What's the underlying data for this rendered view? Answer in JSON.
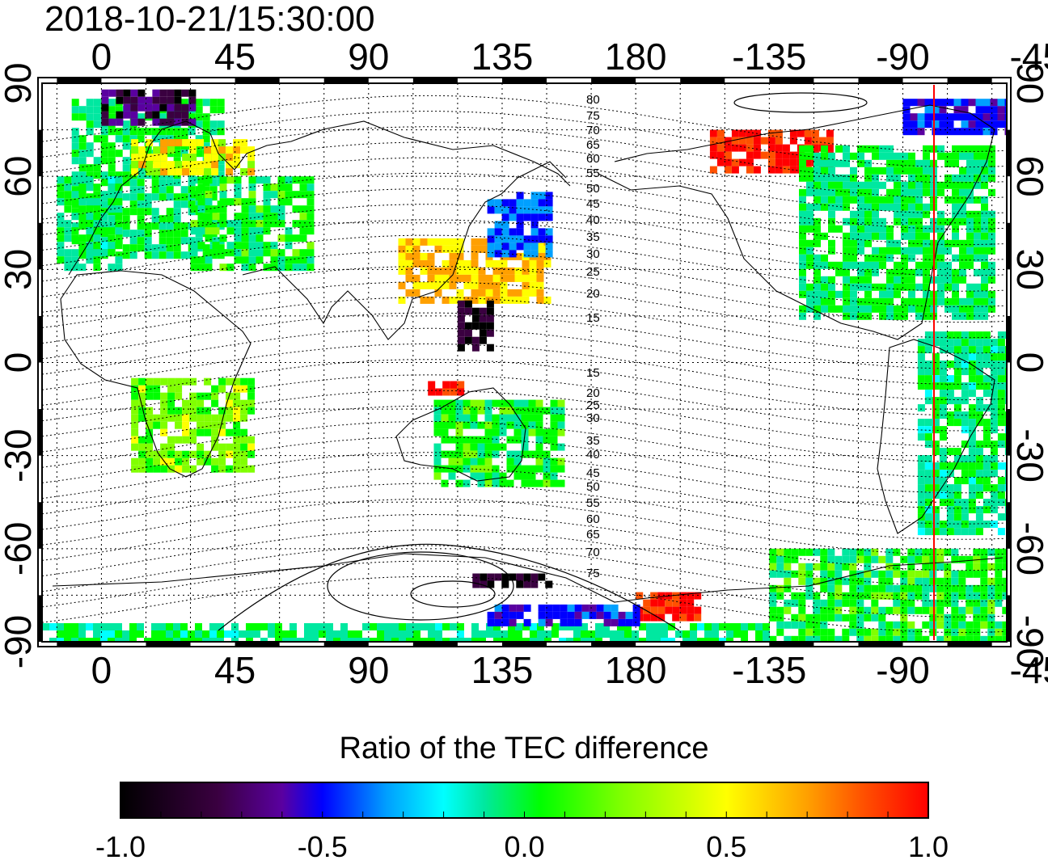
{
  "title": "2018-10-21/15:30:00",
  "top_longitude_ticks": [
    "0",
    "45",
    "90",
    "135",
    "180",
    "-135",
    "-90",
    "-45"
  ],
  "bottom_longitude_ticks": [
    "0",
    "45",
    "90",
    "135",
    "180",
    "-135",
    "-90",
    "-45"
  ],
  "left_latitude_ticks": [
    "90",
    "60",
    "30",
    "0",
    "-30",
    "-60",
    "-90"
  ],
  "right_latitude_ticks": [
    "90",
    "60",
    "30",
    "0",
    "-30",
    "-60",
    "-90"
  ],
  "magnetic_latitude_labels": [
    "80",
    "75",
    "70",
    "65",
    "60",
    "55",
    "50",
    "45",
    "40",
    "35",
    "30",
    "25",
    "20",
    "15",
    "15",
    "20",
    "25",
    "30",
    "35",
    "40",
    "45",
    "50",
    "55",
    "60",
    "65",
    "70",
    "75"
  ],
  "colorbar": {
    "title": "Ratio of the TEC difference",
    "tick_labels": [
      "-1.0",
      "-0.5",
      "0.0",
      "0.5",
      "1.0"
    ],
    "range": [
      -1.0,
      1.0
    ],
    "colormap": [
      "#000000",
      "#3a0040",
      "#5a00a0",
      "#0000ff",
      "#00a0ff",
      "#00ffff",
      "#00e8a0",
      "#00ff00",
      "#80ff00",
      "#ffff00",
      "#ffa000",
      "#ff5000",
      "#ff0000"
    ]
  },
  "chart_data": {
    "type": "heatmap",
    "title": "2018-10-21/15:30:00",
    "xlabel": "",
    "ylabel": "",
    "x_range_deg_lon": [
      -20,
      305
    ],
    "y_range_deg_lat": [
      -90,
      90
    ],
    "value_range": [
      -1.0,
      1.0
    ],
    "grid": true,
    "terminator_line_lon": -50,
    "terminator_color": "#ff0000",
    "regions": [
      {
        "name": "",
        "lon": [
          -10,
          40
        ],
        "lat": [
          35,
          85
        ],
        "value": 0.1
      },
      {
        "name": "",
        "lon": [
          0,
          30
        ],
        "lat": [
          78,
          88
        ],
        "value": -0.8
      },
      {
        "name": "",
        "lon": [
          10,
          50
        ],
        "lat": [
          62,
          72
        ],
        "value": 0.5
      },
      {
        "name": "",
        "lon": [
          30,
          70
        ],
        "lat": [
          30,
          60
        ],
        "value": 0.15
      },
      {
        "name": "",
        "lon": [
          -15,
          5
        ],
        "lat": [
          30,
          60
        ],
        "value": 0.05
      },
      {
        "name": "",
        "lon": [
          10,
          50
        ],
        "lat": [
          -35,
          -5
        ],
        "value": 0.3
      },
      {
        "name": "",
        "lon": [
          100,
          150
        ],
        "lat": [
          20,
          40
        ],
        "value": 0.6
      },
      {
        "name": "",
        "lon": [
          130,
          150
        ],
        "lat": [
          35,
          55
        ],
        "value": -0.4
      },
      {
        "name": "",
        "lon": [
          110,
          120
        ],
        "lat": [
          -10,
          -6
        ],
        "value": 0.95
      },
      {
        "name": "",
        "lon": [
          112,
          155
        ],
        "lat": [
          -40,
          -12
        ],
        "value": 0.15
      },
      {
        "name": "",
        "lon": [
          120,
          130
        ],
        "lat": [
          5,
          20
        ],
        "value": -0.9
      },
      {
        "name": "",
        "lon": [
          205,
          245
        ],
        "lat": [
          62,
          75
        ],
        "value": 0.95
      },
      {
        "name": "",
        "lon": [
          235,
          300
        ],
        "lat": [
          15,
          70
        ],
        "value": 0.1
      },
      {
        "name": "",
        "lon": [
          275,
          305
        ],
        "lat": [
          -55,
          10
        ],
        "value": 0.05
      },
      {
        "name": "",
        "lon": [
          270,
          305
        ],
        "lat": [
          75,
          85
        ],
        "value": -0.5
      },
      {
        "name": "",
        "lon": [
          225,
          305
        ],
        "lat": [
          -90,
          -60
        ],
        "value": 0.15
      },
      {
        "name": "",
        "lon": [
          -20,
          225
        ],
        "lat": [
          -90,
          -84
        ],
        "value": 0.05
      },
      {
        "name": "",
        "lon": [
          180,
          200
        ],
        "lat": [
          -82,
          -74
        ],
        "value": 0.95
      },
      {
        "name": "",
        "lon": [
          130,
          180
        ],
        "lat": [
          -84,
          -78
        ],
        "value": -0.5
      },
      {
        "name": "",
        "lon": [
          125,
          150
        ],
        "lat": [
          -72,
          -68
        ],
        "value": -0.95
      }
    ]
  }
}
